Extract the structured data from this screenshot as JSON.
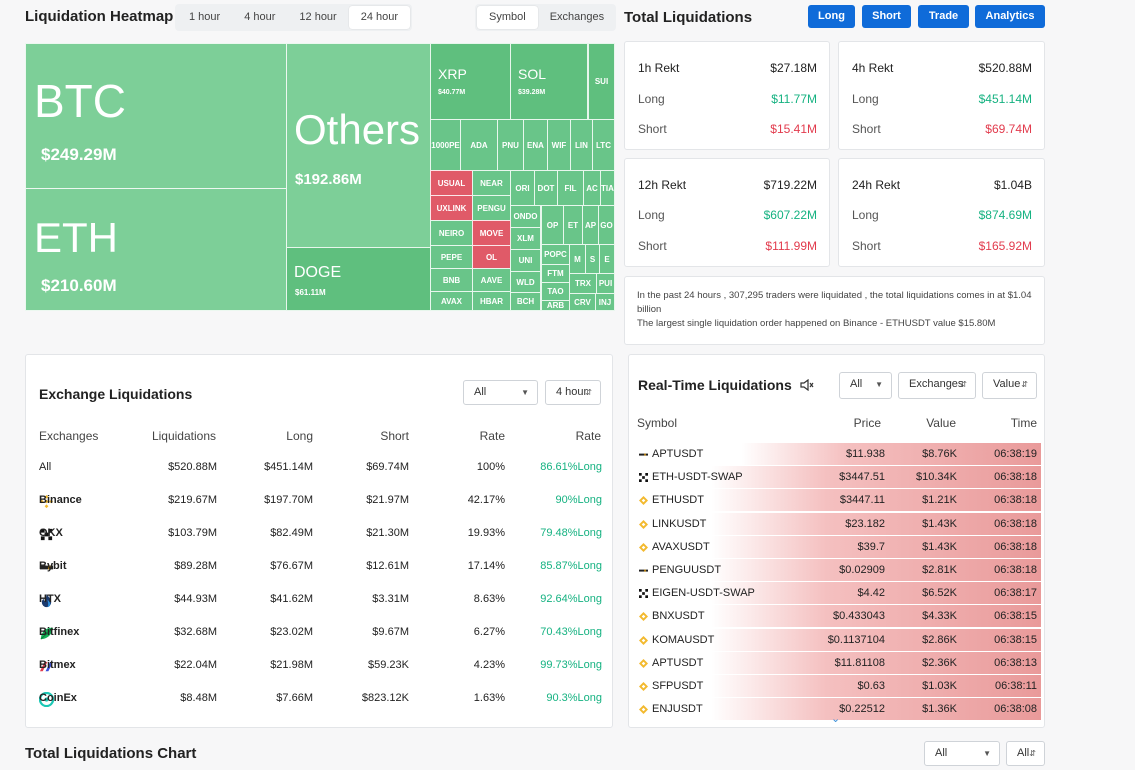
{
  "header": {
    "heatmap_title": "Liquidation Heatmap",
    "time_tabs": [
      "1 hour",
      "4 hour",
      "12 hour",
      "24 hour"
    ],
    "active_time_tab": "24 hour",
    "view_tabs": [
      "Symbol",
      "Exchanges"
    ],
    "active_view_tab": "Symbol",
    "total_title": "Total Liquidations",
    "buttons": [
      "Long",
      "Short",
      "Trade",
      "Analytics"
    ]
  },
  "heatmap": {
    "big": [
      {
        "name": "BTC",
        "value": "$249.29M"
      },
      {
        "name": "Others",
        "value": "$192.86M"
      },
      {
        "name": "ETH",
        "value": "$210.60M"
      },
      {
        "name": "DOGE",
        "value": "$61.11M"
      },
      {
        "name": "XRP",
        "value": "$40.77M"
      },
      {
        "name": "SOL",
        "value": "$39.28M"
      }
    ],
    "small": [
      "SUI",
      "1000PE",
      "ADA",
      "PNU",
      "ENA",
      "WIF",
      "LIN",
      "LTC",
      "USUAL",
      "UXLINK",
      "NEAR",
      "PENGU",
      "ORI",
      "DOT",
      "FIL",
      "AC",
      "TIA",
      "ONDO",
      "XLM",
      "OP",
      "ET",
      "AP",
      "GO",
      "NEIRO",
      "MOVE",
      "POPC",
      "M",
      "S",
      "E",
      "PEPE",
      "OL",
      "UNI",
      "FTM",
      "BNB",
      "AAVE",
      "WLD",
      "TAO",
      "TRX",
      "PUI",
      "AVAX",
      "HBAR",
      "BCH",
      "ARB",
      "CRV",
      "INJ"
    ]
  },
  "rekt": [
    {
      "title": "1h Rekt",
      "total": "$27.18M",
      "long_label": "Long",
      "long": "$11.77M",
      "short_label": "Short",
      "short": "$15.41M"
    },
    {
      "title": "4h Rekt",
      "total": "$520.88M",
      "long_label": "Long",
      "long": "$451.14M",
      "short_label": "Short",
      "short": "$69.74M"
    },
    {
      "title": "12h Rekt",
      "total": "$719.22M",
      "long_label": "Long",
      "long": "$607.22M",
      "short_label": "Short",
      "short": "$111.99M"
    },
    {
      "title": "24h Rekt",
      "total": "$1.04B",
      "long_label": "Long",
      "long": "$874.69M",
      "short_label": "Short",
      "short": "$165.92M"
    }
  ],
  "info": {
    "line1": "In the past 24 hours , 307,295 traders were liquidated , the total liquidations comes in at $1.04 billion",
    "line2": "The largest single liquidation order happened on Binance - ETHUSDT value $15.80M"
  },
  "exchange_liq": {
    "title": "Exchange Liquidations",
    "filter_all": "All",
    "filter_time": "4 hour",
    "columns": [
      "Exchanges",
      "Liquidations",
      "Long",
      "Short",
      "Rate",
      "Rate"
    ],
    "rows": [
      {
        "name": "All",
        "liq": "$520.88M",
        "long": "$451.14M",
        "short": "$69.74M",
        "rate": "100%",
        "long_rate": "86.61%Long",
        "icon": ""
      },
      {
        "name": "Binance",
        "liq": "$219.67M",
        "long": "$197.70M",
        "short": "$21.97M",
        "rate": "42.17%",
        "long_rate": "90%Long",
        "icon": "binance-icon"
      },
      {
        "name": "OKX",
        "liq": "$103.79M",
        "long": "$82.49M",
        "short": "$21.30M",
        "rate": "19.93%",
        "long_rate": "79.48%Long",
        "icon": "okx-icon"
      },
      {
        "name": "Bybit",
        "liq": "$89.28M",
        "long": "$76.67M",
        "short": "$12.61M",
        "rate": "17.14%",
        "long_rate": "85.87%Long",
        "icon": "bybit-icon"
      },
      {
        "name": "HTX",
        "liq": "$44.93M",
        "long": "$41.62M",
        "short": "$3.31M",
        "rate": "8.63%",
        "long_rate": "92.64%Long",
        "icon": "htx-icon"
      },
      {
        "name": "Bitfinex",
        "liq": "$32.68M",
        "long": "$23.02M",
        "short": "$9.67M",
        "rate": "6.27%",
        "long_rate": "70.43%Long",
        "icon": "bitfinex-icon"
      },
      {
        "name": "Bitmex",
        "liq": "$22.04M",
        "long": "$21.98M",
        "short": "$59.23K",
        "rate": "4.23%",
        "long_rate": "99.73%Long",
        "icon": "bitmex-icon"
      },
      {
        "name": "CoinEx",
        "liq": "$8.48M",
        "long": "$7.66M",
        "short": "$823.12K",
        "rate": "1.63%",
        "long_rate": "90.3%Long",
        "icon": "coinex-icon"
      }
    ]
  },
  "realtime": {
    "title": "Real-Time Liquidations",
    "filter_all": "All",
    "filter_exchanges": "Exchanges",
    "filter_value": "Value",
    "columns": [
      "Symbol",
      "Price",
      "Value",
      "Time"
    ],
    "rows": [
      {
        "symbol": "APTUSDT",
        "price": "$11.938",
        "value": "$8.76K",
        "time": "06:38:19",
        "ex": "bybit"
      },
      {
        "symbol": "ETH-USDT-SWAP",
        "price": "$3447.51",
        "value": "$10.34K",
        "time": "06:38:18",
        "ex": "okx"
      },
      {
        "symbol": "ETHUSDT",
        "price": "$3447.11",
        "value": "$1.21K",
        "time": "06:38:18",
        "ex": "binance"
      },
      {
        "symbol": "LINKUSDT",
        "price": "$23.182",
        "value": "$1.43K",
        "time": "06:38:18",
        "ex": "binance"
      },
      {
        "symbol": "AVAXUSDT",
        "price": "$39.7",
        "value": "$1.43K",
        "time": "06:38:18",
        "ex": "binance"
      },
      {
        "symbol": "PENGUUSDT",
        "price": "$0.02909",
        "value": "$2.81K",
        "time": "06:38:18",
        "ex": "bybit"
      },
      {
        "symbol": "EIGEN-USDT-SWAP",
        "price": "$4.42",
        "value": "$6.52K",
        "time": "06:38:17",
        "ex": "okx"
      },
      {
        "symbol": "BNXUSDT",
        "price": "$0.433043",
        "value": "$4.33K",
        "time": "06:38:15",
        "ex": "binance"
      },
      {
        "symbol": "KOMAUSDT",
        "price": "$0.1137104",
        "value": "$2.86K",
        "time": "06:38:15",
        "ex": "binance"
      },
      {
        "symbol": "APTUSDT",
        "price": "$11.81108",
        "value": "$2.36K",
        "time": "06:38:13",
        "ex": "binance"
      },
      {
        "symbol": "SFPUSDT",
        "price": "$0.63",
        "value": "$1.03K",
        "time": "06:38:11",
        "ex": "binance"
      },
      {
        "symbol": "ENJUSDT",
        "price": "$0.22512",
        "value": "$1.36K",
        "time": "06:38:08",
        "ex": "binance"
      }
    ]
  },
  "chart_section": {
    "title": "Total Liquidations Chart",
    "filter_all_1": "All",
    "filter_all_2": "All"
  }
}
